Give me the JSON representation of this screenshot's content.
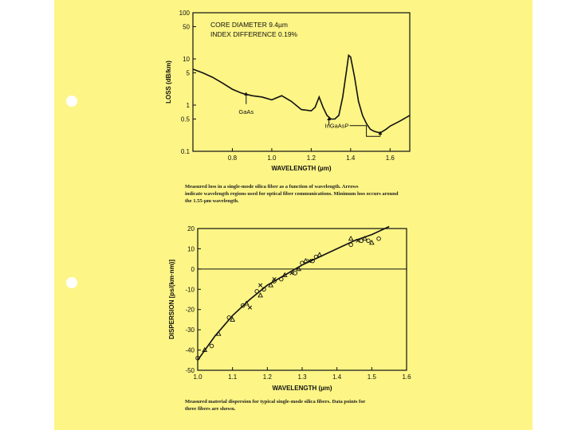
{
  "chart_data": [
    {
      "type": "line",
      "title": "",
      "xlabel": "WAVELENGTH (µm)",
      "ylabel": "LOSS (dB/km)",
      "y_scale": "log",
      "xlim": [
        0.6,
        1.7
      ],
      "ylim": [
        0.1,
        100
      ],
      "x_ticks": [
        "0.8",
        "1.0",
        "1.2",
        "1.4",
        "1.6"
      ],
      "y_ticks": [
        "100",
        "50",
        "10",
        "5",
        "1",
        "0.5",
        "0.1"
      ],
      "annotations": [
        "CORE DIAMETER 9.4µm",
        "INDEX DIFFERENCE 0.19%",
        "GaAs",
        "InGaAsP"
      ],
      "series": [
        {
          "x": [
            0.6,
            0.65,
            0.7,
            0.75,
            0.8,
            0.85,
            0.9,
            0.95,
            1.0,
            1.05,
            1.1,
            1.15,
            1.2,
            1.22,
            1.24,
            1.26,
            1.28,
            1.3,
            1.32,
            1.34,
            1.36,
            1.38,
            1.39,
            1.4,
            1.42,
            1.44,
            1.46,
            1.48,
            1.5,
            1.52,
            1.55,
            1.58,
            1.6,
            1.65,
            1.7
          ],
          "y": [
            6.0,
            5.0,
            4.0,
            3.0,
            2.2,
            1.8,
            1.6,
            1.5,
            1.3,
            1.6,
            1.2,
            0.8,
            0.75,
            0.9,
            1.5,
            0.9,
            0.6,
            0.5,
            0.5,
            0.6,
            1.5,
            6.0,
            12.0,
            11.0,
            4.0,
            1.2,
            0.6,
            0.4,
            0.3,
            0.27,
            0.25,
            0.3,
            0.35,
            0.45,
            0.6
          ]
        }
      ]
    },
    {
      "type": "scatter",
      "title": "",
      "xlabel": "WAVELENGTH (µm)",
      "ylabel": "DISPERSION [ps/(km·nm)]",
      "xlim": [
        1.0,
        1.6
      ],
      "ylim": [
        -50,
        20
      ],
      "x_ticks": [
        "1.0",
        "1.1",
        "1.2",
        "1.3",
        "1.4",
        "1.5",
        "1.6"
      ],
      "y_ticks": [
        "20",
        "10",
        "0",
        "-10",
        "-20",
        "-30",
        "-40",
        "-50"
      ],
      "fit_curve": {
        "x": [
          1.0,
          1.05,
          1.1,
          1.15,
          1.2,
          1.25,
          1.3,
          1.35,
          1.4,
          1.45,
          1.5,
          1.55
        ],
        "y": [
          -45,
          -33,
          -23,
          -15,
          -8,
          -3,
          2,
          6,
          10,
          14,
          17,
          21
        ]
      },
      "series": [
        {
          "marker": "circle",
          "x": [
            1.0,
            1.04,
            1.09,
            1.13,
            1.17,
            1.19,
            1.22,
            1.24,
            1.28,
            1.3,
            1.33,
            1.34,
            1.44,
            1.47,
            1.49,
            1.52
          ],
          "y": [
            -44,
            -38,
            -24,
            -18,
            -11,
            -10,
            -6,
            -5,
            -2,
            3,
            4,
            6,
            12,
            14,
            14,
            15
          ]
        },
        {
          "marker": "triangle",
          "x": [
            1.02,
            1.06,
            1.1,
            1.14,
            1.18,
            1.21,
            1.25,
            1.29,
            1.31,
            1.35,
            1.44,
            1.48,
            1.5
          ],
          "y": [
            -40,
            -32,
            -25,
            -17,
            -13,
            -8,
            -3,
            0,
            4,
            7,
            15,
            15,
            13
          ]
        },
        {
          "marker": "cross",
          "x": [
            1.15,
            1.18,
            1.22,
            1.27,
            1.32,
            1.46
          ],
          "y": [
            -19,
            -8,
            -5,
            -2,
            4,
            14
          ]
        }
      ]
    }
  ],
  "captions": {
    "chart1": [
      "Measured loss in a single-mode silica fiber as a function of wavelength. Arrows",
      "indicate wavelength regions used for optical fiber communications. Minimum loss occurs around",
      "the 1.55-µm wavelength."
    ],
    "chart2": [
      "Measured material dispersion for typical single-mode silica fibers. Data points for",
      "three fibers are shown."
    ]
  },
  "colors": {
    "paper": "#fdf586",
    "ink": "#111111"
  }
}
